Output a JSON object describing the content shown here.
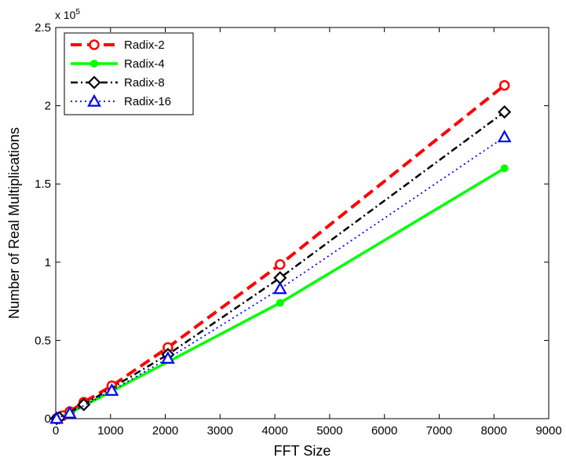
{
  "chart_data": {
    "type": "line",
    "title": "",
    "xlabel": "FFT Size",
    "ylabel": "Number of Real Multiplications",
    "xlim": [
      0,
      9000
    ],
    "ylim": [
      0,
      250000
    ],
    "xticks": [
      0,
      1000,
      2000,
      3000,
      4000,
      5000,
      6000,
      7000,
      8000,
      9000
    ],
    "xtick_labels": [
      "0",
      "1000",
      "2000",
      "3000",
      "4000",
      "5000",
      "6000",
      "7000",
      "8000",
      "9000"
    ],
    "yticks": [
      0,
      50000,
      100000,
      150000,
      200000,
      250000
    ],
    "ytick_labels": [
      "0",
      "0.5",
      "1",
      "1.5",
      "2",
      "2.5"
    ],
    "y_exponent_label": "x 10",
    "y_exponent_power": "5",
    "grid": false,
    "legend_position": "top-left",
    "series": [
      {
        "name": "Radix-2",
        "color": "#ff0000",
        "line_style": "dashed",
        "marker": "circle",
        "x": [
          16,
          32,
          64,
          128,
          256,
          512,
          1024,
          2048,
          4096,
          8192
        ],
        "y": [
          100,
          300,
          800,
          1900,
          4500,
          10500,
          21000,
          45500,
          98500,
          213000
        ]
      },
      {
        "name": "Radix-4",
        "color": "#00ff00",
        "line_style": "solid",
        "marker": "dot",
        "x": [
          16,
          64,
          256,
          1024,
          4096,
          8192
        ],
        "y": [
          100,
          600,
          3600,
          17500,
          74000,
          160000
        ]
      },
      {
        "name": "Radix-8",
        "color": "#000000",
        "line_style": "dashdot",
        "marker": "diamond",
        "x": [
          16,
          64,
          512,
          2048,
          4096,
          8192
        ],
        "y": [
          100,
          600,
          9000,
          41000,
          90000,
          196000
        ]
      },
      {
        "name": "Radix-16",
        "color": "#0000ff",
        "line_style": "dotted",
        "marker": "triangle",
        "x": [
          16,
          256,
          1024,
          2048,
          4096,
          8192
        ],
        "y": [
          100,
          3500,
          18000,
          38500,
          83000,
          180000
        ]
      }
    ]
  }
}
